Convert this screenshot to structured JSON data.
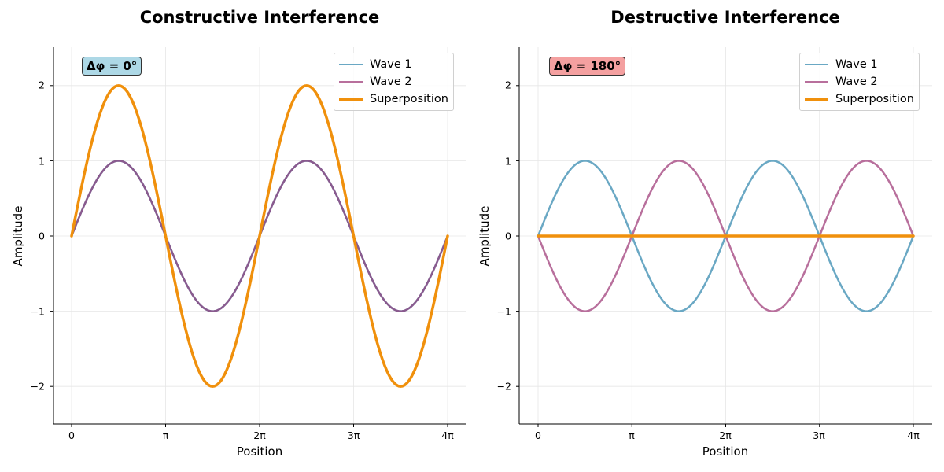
{
  "chart_data": [
    {
      "type": "line",
      "title": "Constructive Interference",
      "xlabel": "Position",
      "ylabel": "Amplitude",
      "xlim": [
        "0",
        "4π"
      ],
      "ylim": [
        -2.5,
        2.5
      ],
      "x_ticks": [
        "0",
        "π",
        "2π",
        "3π",
        "4π"
      ],
      "y_ticks": [
        "−2",
        "−1",
        "0",
        "1",
        "2"
      ],
      "annotation": "Δφ = 0°",
      "annotation_color": "#add8e6",
      "grid": true,
      "legend_position": "top-right",
      "series": [
        {
          "name": "Wave 1",
          "color": "#6aa8c4",
          "amplitude": 1,
          "phase_deg": 0,
          "x": [
            "0",
            "π/2",
            "π",
            "3π/2",
            "2π",
            "5π/2",
            "3π",
            "7π/2",
            "4π"
          ],
          "y": [
            0,
            1,
            0,
            -1,
            0,
            1,
            0,
            -1,
            0
          ]
        },
        {
          "name": "Wave 2",
          "color": "#b86f9c",
          "amplitude": 1,
          "phase_deg": 0,
          "x": [
            "0",
            "π/2",
            "π",
            "3π/2",
            "2π",
            "5π/2",
            "3π",
            "7π/2",
            "4π"
          ],
          "y": [
            0,
            1,
            0,
            -1,
            0,
            1,
            0,
            -1,
            0
          ]
        },
        {
          "name": "Superposition",
          "color": "#f0900c",
          "amplitude": 2,
          "phase_deg": 0,
          "x": [
            "0",
            "π/2",
            "π",
            "3π/2",
            "2π",
            "5π/2",
            "3π",
            "7π/2",
            "4π"
          ],
          "y": [
            0,
            2,
            0,
            -2,
            0,
            2,
            0,
            -2,
            0
          ]
        }
      ]
    },
    {
      "type": "line",
      "title": "Destructive Interference",
      "xlabel": "Position",
      "ylabel": "Amplitude",
      "xlim": [
        "0",
        "4π"
      ],
      "ylim": [
        -2.5,
        2.5
      ],
      "x_ticks": [
        "0",
        "π",
        "2π",
        "3π",
        "4π"
      ],
      "y_ticks": [
        "−2",
        "−1",
        "0",
        "1",
        "2"
      ],
      "annotation": "Δφ = 180°",
      "annotation_color": "#f4a0a0",
      "grid": true,
      "legend_position": "top-right",
      "series": [
        {
          "name": "Wave 1",
          "color": "#6aa8c4",
          "amplitude": 1,
          "phase_deg": 0,
          "x": [
            "0",
            "π/2",
            "π",
            "3π/2",
            "2π",
            "5π/2",
            "3π",
            "7π/2",
            "4π"
          ],
          "y": [
            0,
            1,
            0,
            -1,
            0,
            1,
            0,
            -1,
            0
          ]
        },
        {
          "name": "Wave 2",
          "color": "#b86f9c",
          "amplitude": -1,
          "phase_deg": 180,
          "x": [
            "0",
            "π/2",
            "π",
            "3π/2",
            "2π",
            "5π/2",
            "3π",
            "7π/2",
            "4π"
          ],
          "y": [
            0,
            -1,
            0,
            1,
            0,
            -1,
            0,
            1,
            0
          ]
        },
        {
          "name": "Superposition",
          "color": "#f0900c",
          "amplitude": 0,
          "phase_deg": 0,
          "x": [
            "0",
            "π/2",
            "π",
            "3π/2",
            "2π",
            "5π/2",
            "3π",
            "7π/2",
            "4π"
          ],
          "y": [
            0,
            0,
            0,
            0,
            0,
            0,
            0,
            0,
            0
          ]
        }
      ]
    }
  ]
}
